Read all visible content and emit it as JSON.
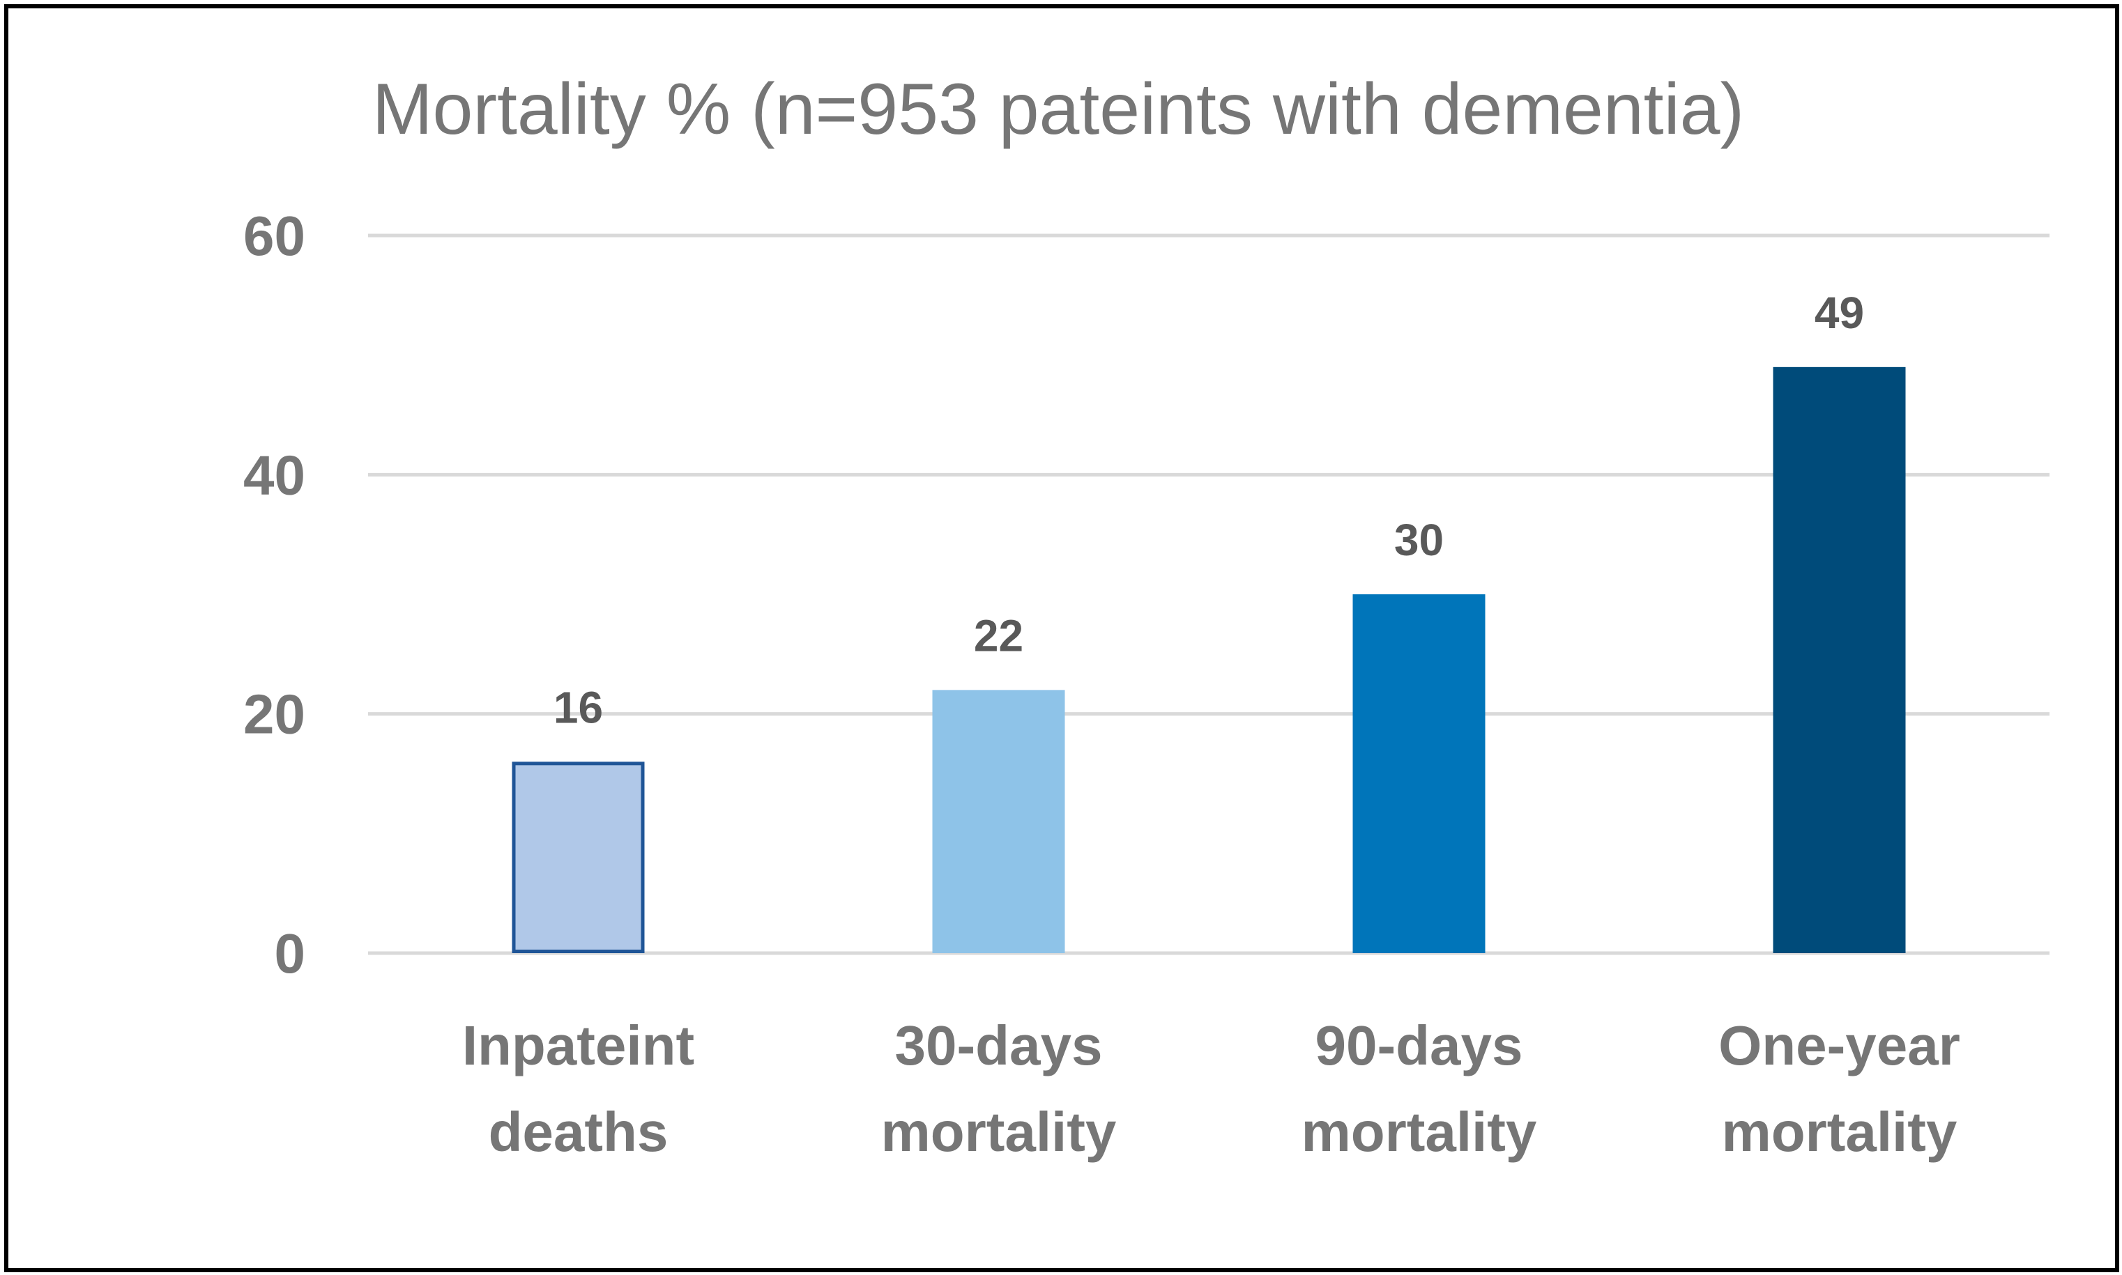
{
  "chart_data": {
    "type": "bar",
    "title": "Mortality % (n=953 pateints with dementia)",
    "categories": [
      [
        "Inpateint",
        "deaths"
      ],
      [
        "30-days",
        "mortality"
      ],
      [
        "90-days",
        "mortality"
      ],
      [
        "One-year",
        "mortality"
      ]
    ],
    "values": [
      16,
      22,
      30,
      49
    ],
    "value_labels": [
      "16",
      "22",
      "30",
      "49"
    ],
    "bar_colors": [
      "#B0C8E8",
      "#8EC3E8",
      "#0075BA",
      "#004B7A"
    ],
    "bar_outline_colors": [
      "#1F5597",
      "none",
      "none",
      "none"
    ],
    "yticks": [
      "0",
      "20",
      "40",
      "60"
    ],
    "ylim": [
      0,
      60
    ],
    "grid": true,
    "legend": "none",
    "xlabel": "",
    "ylabel": ""
  },
  "colors": {
    "gridline": "#D9D9D9",
    "text": "#767676",
    "value_text": "#595959",
    "border": "#000000"
  }
}
